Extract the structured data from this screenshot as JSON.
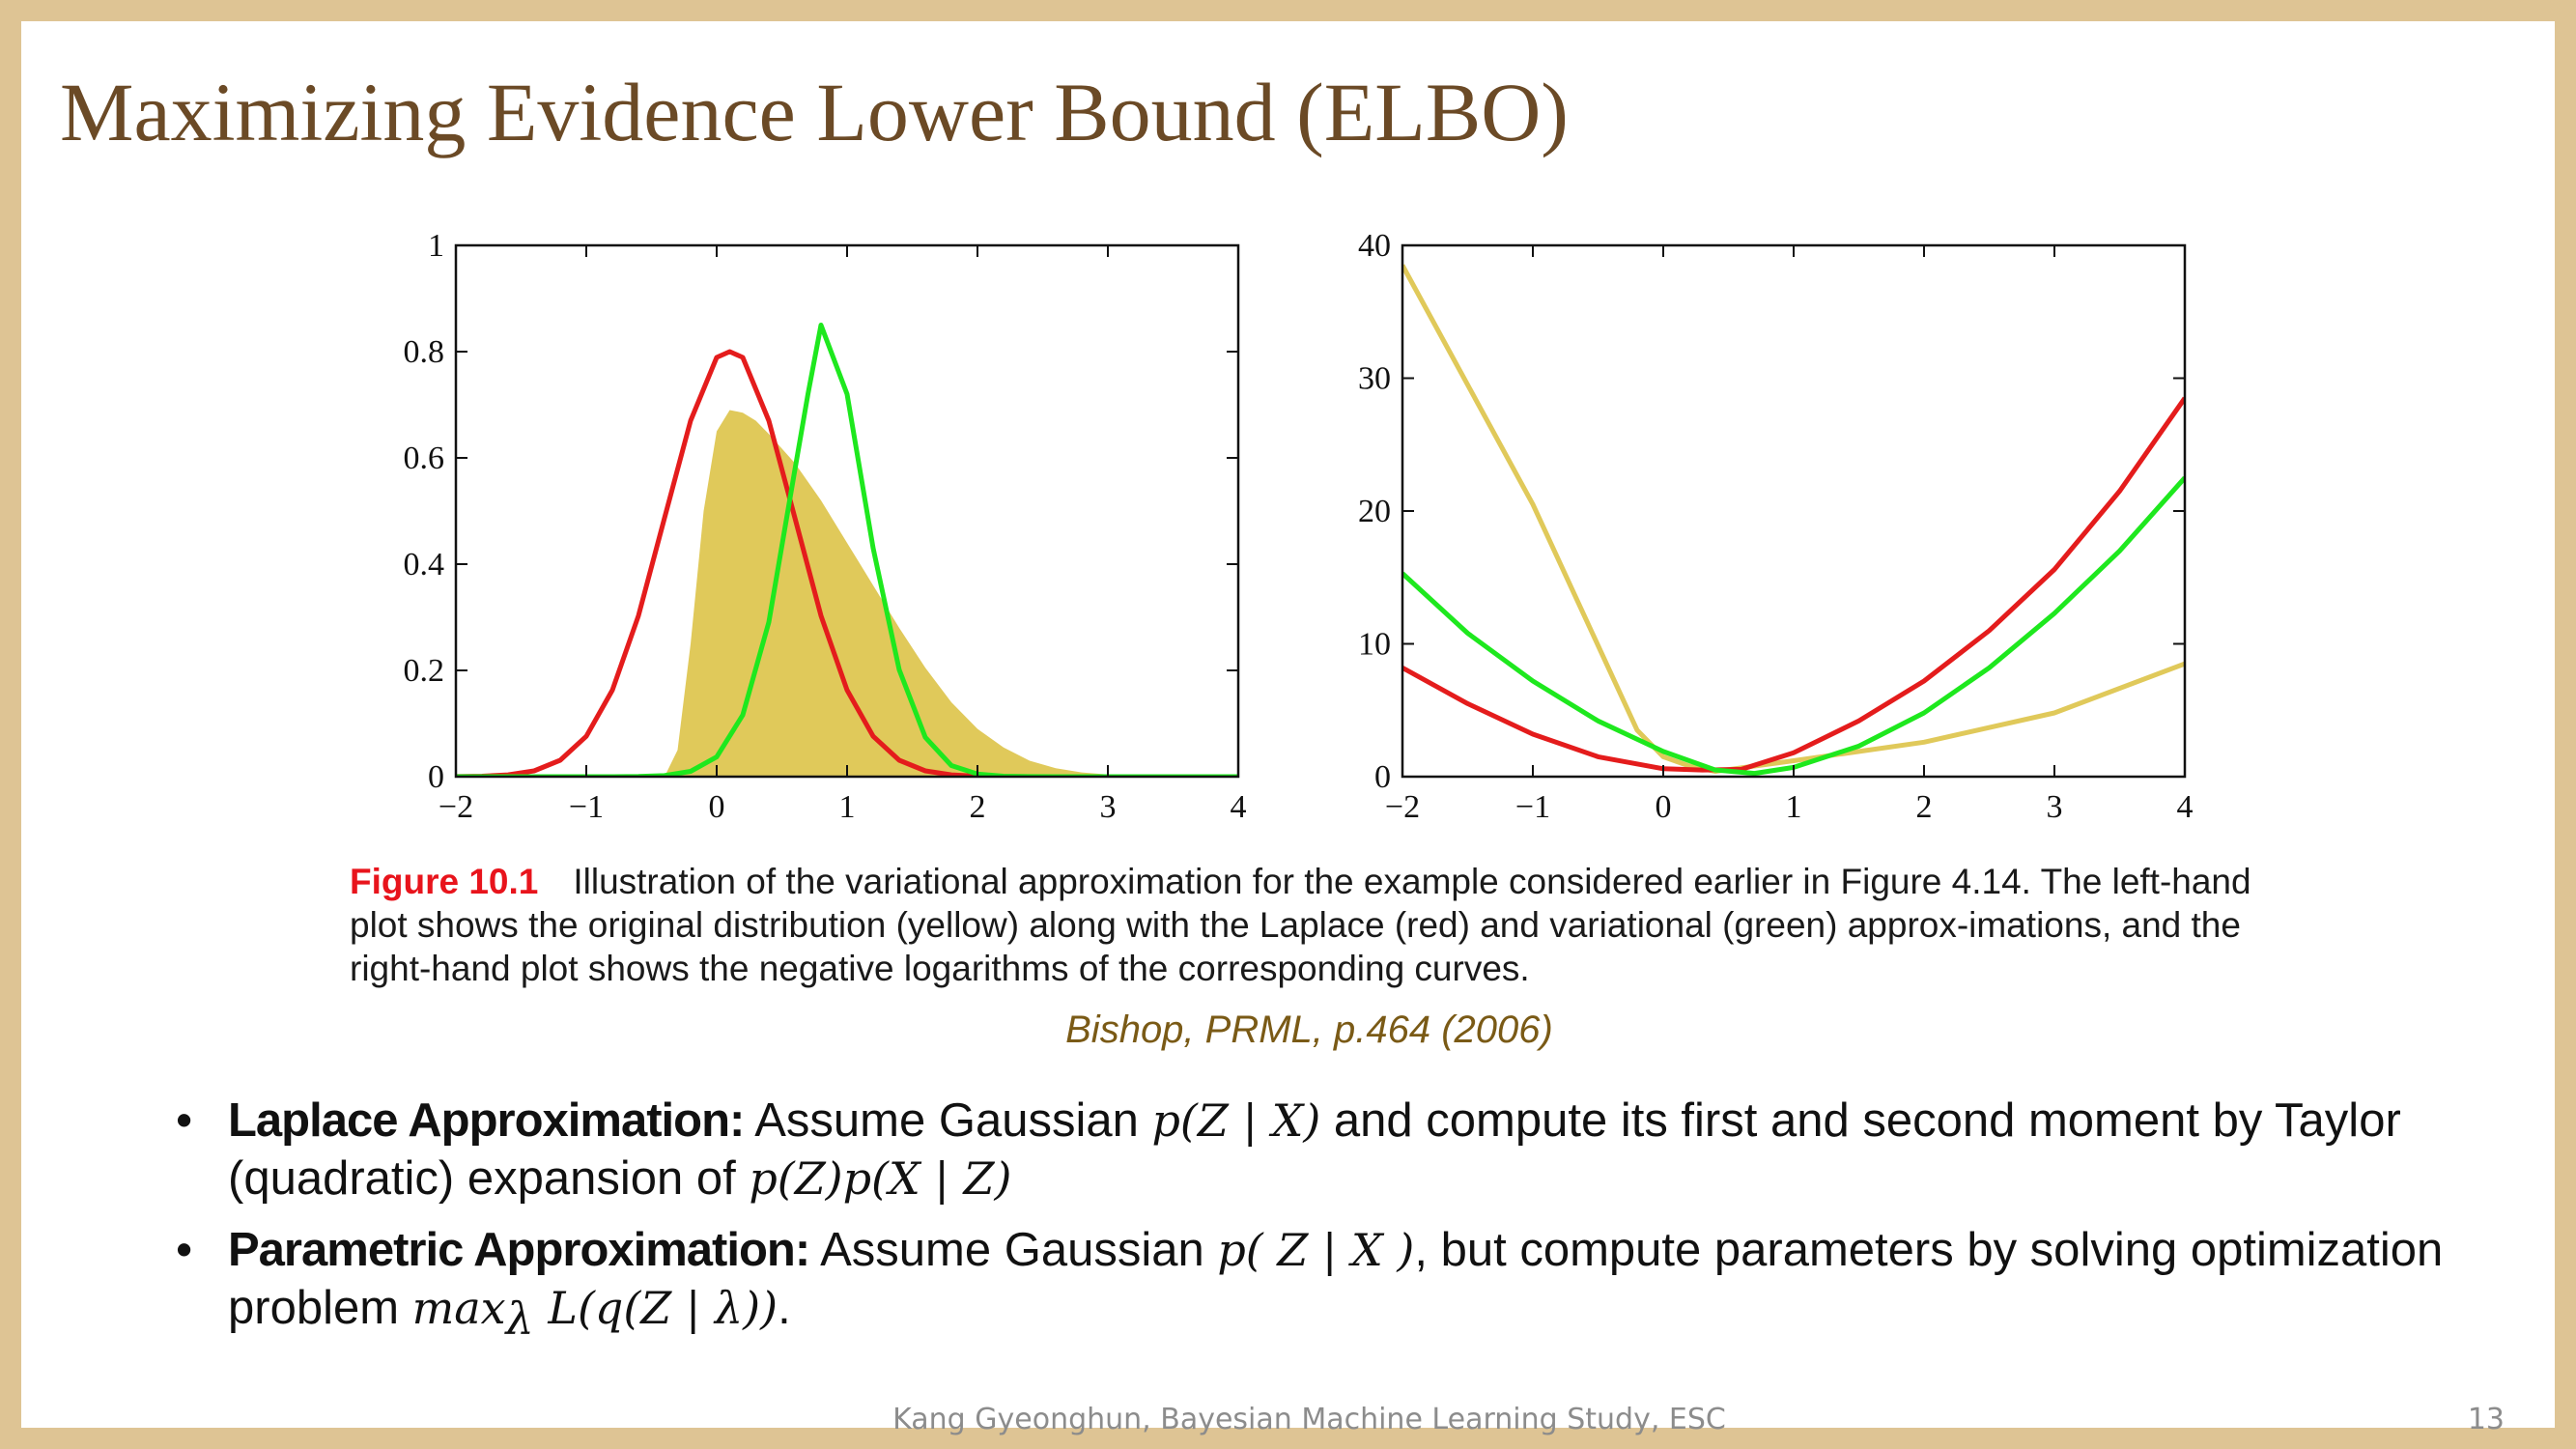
{
  "slide": {
    "title": "Maximizing Evidence Lower Bound (ELBO)",
    "footer": "Kang Gyeonghun, Bayesian Machine Learning Study, ESC",
    "page_number": "13",
    "border_color": "#dec494",
    "title_color": "#6b4a26"
  },
  "figure": {
    "label": "Figure 10.1",
    "caption": "Illustration of the variational approximation for the example considered earlier in Figure 4.14. The left-hand plot shows the original distribution (yellow) along with the Laplace (red) and variational (green) approx-imations, and the right-hand plot shows the negative logarithms of the corresponding curves.",
    "source": "Bishop, PRML, p.464 (2006)"
  },
  "bullets": [
    {
      "term": "Laplace Approximation:",
      "segments": [
        {
          "t": "text",
          "v": " Assume Gaussian "
        },
        {
          "t": "math",
          "v": "p(Z | X)"
        },
        {
          "t": "text",
          "v": " and compute its first and second moment by Taylor (quadratic) expansion of "
        },
        {
          "t": "math",
          "v": "p(Z)p(X | Z)"
        }
      ]
    },
    {
      "term": "Parametric Approximation:",
      "segments": [
        {
          "t": "text",
          "v": " Assume Gaussian "
        },
        {
          "t": "math",
          "v": "p( Z | X )"
        },
        {
          "t": "text",
          "v": ", but compute parameters by solving optimization problem "
        },
        {
          "t": "math",
          "v": "max"
        },
        {
          "t": "sub",
          "v": "λ"
        },
        {
          "t": "math",
          "v": " L(q(Z | λ))"
        },
        {
          "t": "text",
          "v": "."
        }
      ]
    }
  ],
  "chart_data": [
    {
      "type": "area",
      "title": "",
      "xlabel": "",
      "ylabel": "",
      "xlim": [
        -2,
        4
      ],
      "ylim": [
        0,
        1
      ],
      "xticks": [
        "−2",
        "−1",
        "0",
        "1",
        "2",
        "3",
        "4"
      ],
      "xtick_values": [
        -2,
        -1,
        0,
        1,
        2,
        3,
        4
      ],
      "yticks": [
        "0",
        "0.2",
        "0.4",
        "0.6",
        "0.8",
        "1"
      ],
      "ytick_values": [
        0,
        0.2,
        0.4,
        0.6,
        0.8,
        1
      ],
      "grid": false,
      "series": [
        {
          "kind": "area",
          "color": "#e0c95a",
          "x": [
            -2,
            -0.4,
            -0.3,
            -0.2,
            -0.1,
            0.0,
            0.1,
            0.2,
            0.3,
            0.4,
            0.6,
            0.8,
            1.0,
            1.2,
            1.4,
            1.6,
            1.8,
            2.0,
            2.2,
            2.4,
            2.6,
            2.8,
            3.0,
            3.2,
            3.5,
            4
          ],
          "y": [
            0,
            0,
            0.05,
            0.25,
            0.5,
            0.65,
            0.69,
            0.685,
            0.67,
            0.645,
            0.59,
            0.52,
            0.44,
            0.36,
            0.28,
            0.205,
            0.14,
            0.09,
            0.055,
            0.03,
            0.016,
            0.008,
            0.004,
            0.002,
            0.0005,
            0
          ]
        },
        {
          "kind": "line",
          "color": "#e41c1c",
          "x": [
            -2,
            -1.8,
            -1.6,
            -1.4,
            -1.2,
            -1.0,
            -0.8,
            -0.6,
            -0.4,
            -0.2,
            0.0,
            0.1,
            0.2,
            0.4,
            0.6,
            0.8,
            1.0,
            1.2,
            1.4,
            1.6,
            1.8,
            2.0,
            2.2,
            2.4,
            2.6,
            4
          ],
          "y": [
            0.0002,
            0.001,
            0.0035,
            0.011,
            0.031,
            0.076,
            0.163,
            0.303,
            0.487,
            0.67,
            0.789,
            0.8,
            0.789,
            0.67,
            0.487,
            0.303,
            0.163,
            0.076,
            0.031,
            0.011,
            0.0035,
            0.001,
            0.0002,
            4e-05,
            1e-05,
            0
          ]
        },
        {
          "kind": "line",
          "color": "#1ee81e",
          "x": [
            -2,
            -0.8,
            -0.6,
            -0.4,
            -0.2,
            0.0,
            0.2,
            0.4,
            0.6,
            0.7,
            0.8,
            1.0,
            1.2,
            1.4,
            1.6,
            1.8,
            2.0,
            2.2,
            2.4,
            2.6,
            2.8,
            4
          ],
          "y": [
            0,
            5e-05,
            0.0004,
            0.002,
            0.01,
            0.037,
            0.116,
            0.291,
            0.578,
            0.72,
            0.85,
            0.72,
            0.43,
            0.201,
            0.074,
            0.021,
            0.005,
            0.0009,
            0.0001,
            1e-05,
            0,
            0
          ]
        }
      ]
    },
    {
      "type": "line",
      "title": "",
      "xlabel": "",
      "ylabel": "",
      "xlim": [
        -2,
        4
      ],
      "ylim": [
        0,
        40
      ],
      "xticks": [
        "−2",
        "−1",
        "0",
        "1",
        "2",
        "3",
        "4"
      ],
      "xtick_values": [
        -2,
        -1,
        0,
        1,
        2,
        3,
        4
      ],
      "yticks": [
        "0",
        "10",
        "20",
        "30",
        "40"
      ],
      "ytick_values": [
        0,
        10,
        20,
        30,
        40
      ],
      "grid": false,
      "series": [
        {
          "kind": "line",
          "color": "#e0c95a",
          "x": [
            -2,
            -1.0,
            -0.2,
            0.0,
            0.2,
            0.4,
            1.0,
            2.0,
            3.0,
            4.0
          ],
          "y": [
            38.5,
            20.5,
            3.5,
            1.5,
            0.8,
            0.4,
            1.2,
            2.6,
            4.8,
            8.5
          ]
        },
        {
          "kind": "line",
          "color": "#e41c1c",
          "x": [
            -2,
            -1.5,
            -1.0,
            -0.5,
            0.0,
            0.3,
            0.6,
            1.0,
            1.5,
            2.0,
            2.5,
            3.0,
            3.5,
            4.0
          ],
          "y": [
            8.2,
            5.5,
            3.2,
            1.5,
            0.6,
            0.5,
            0.55,
            1.8,
            4.2,
            7.2,
            11.0,
            15.6,
            21.5,
            28.5
          ]
        },
        {
          "kind": "line",
          "color": "#1ee81e",
          "x": [
            -2,
            -1.5,
            -1.0,
            -0.5,
            0.0,
            0.4,
            0.7,
            1.0,
            1.5,
            2.0,
            2.5,
            3.0,
            3.5,
            4.0
          ],
          "y": [
            15.3,
            10.8,
            7.2,
            4.2,
            1.9,
            0.5,
            0.25,
            0.7,
            2.3,
            4.8,
            8.2,
            12.3,
            17.0,
            22.5
          ]
        }
      ]
    }
  ]
}
